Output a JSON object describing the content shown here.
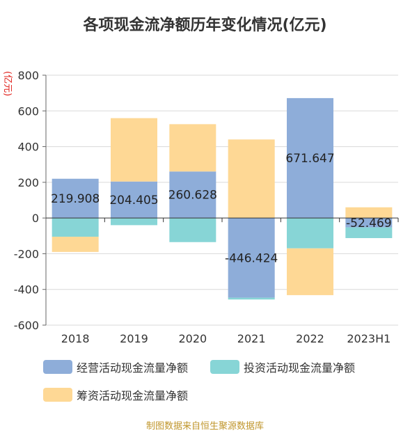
{
  "title": "各项现金流净额历年变化情况(亿元)",
  "unit_label": "(亿元)",
  "footer": "制图数据来自恒生聚源数据库",
  "colors": {
    "operating": "#8eadd9",
    "investing": "#87d5d6",
    "financing": "#fed895",
    "unit": "#e0201b",
    "footer": "#c0962c"
  },
  "chart_data": {
    "type": "bar",
    "stacked": true,
    "title": "各项现金流净额历年变化情况(亿元)",
    "ylabel": "(亿元)",
    "ylim": [
      -600,
      800
    ],
    "yticks": [
      800,
      600,
      400,
      200,
      0,
      -200,
      -400,
      -600
    ],
    "categories": [
      "2018",
      "2019",
      "2020",
      "2021",
      "2022",
      "2023H1"
    ],
    "series": [
      {
        "name": "经营活动现金流量净额",
        "values": [
          219.908,
          204.405,
          260.628,
          -446.424,
          671.647,
          -52.469
        ]
      },
      {
        "name": "投资活动现金流量净额",
        "values": [
          -105,
          -40,
          -135,
          -10,
          -170,
          -60
        ]
      },
      {
        "name": "筹资活动现金流量净额",
        "values": [
          -85,
          355,
          265,
          440,
          -262,
          60
        ]
      }
    ],
    "data_labels": [
      "219.908",
      "204.405",
      "260.628",
      "-446.424",
      "671.647",
      "-52.469"
    ],
    "grid": true,
    "legend_position": "bottom"
  }
}
